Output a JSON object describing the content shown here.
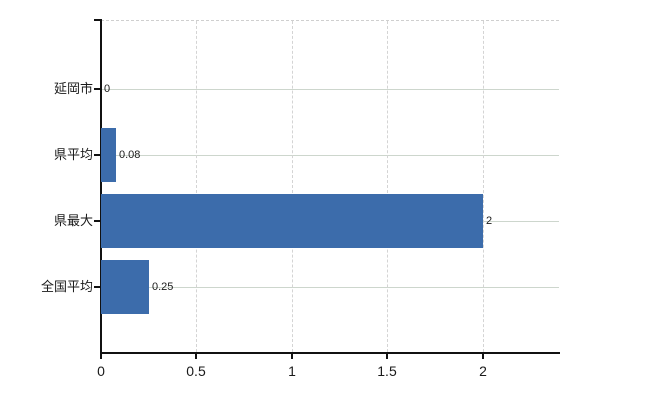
{
  "chart_data": {
    "type": "bar",
    "orientation": "horizontal",
    "title": "",
    "xlabel": "",
    "ylabel": "",
    "categories": [
      "延岡市",
      "県平均",
      "県最大",
      "全国平均"
    ],
    "values": [
      0,
      0.08,
      2,
      0.25
    ],
    "value_labels": [
      "0",
      "0.08",
      "2",
      "0.25"
    ],
    "x_ticks": [
      0,
      0.5,
      1,
      1.5,
      2
    ],
    "x_tick_labels": [
      "0",
      "0.5",
      "1",
      "1.5",
      "2"
    ],
    "xlim": [
      0,
      2.4
    ],
    "grid": {
      "vertical": "dashed at each x tick",
      "horizontal": "solid at each category center",
      "plot_top_border": "dashed"
    },
    "legend": "none",
    "colors": {
      "bar": "#3c6cab",
      "axis": "#111111",
      "vertical_grid": "#d4d4d4",
      "horizontal_grid": "#cdd6cd",
      "text": "#1a1a1a",
      "background": "#ffffff"
    }
  }
}
